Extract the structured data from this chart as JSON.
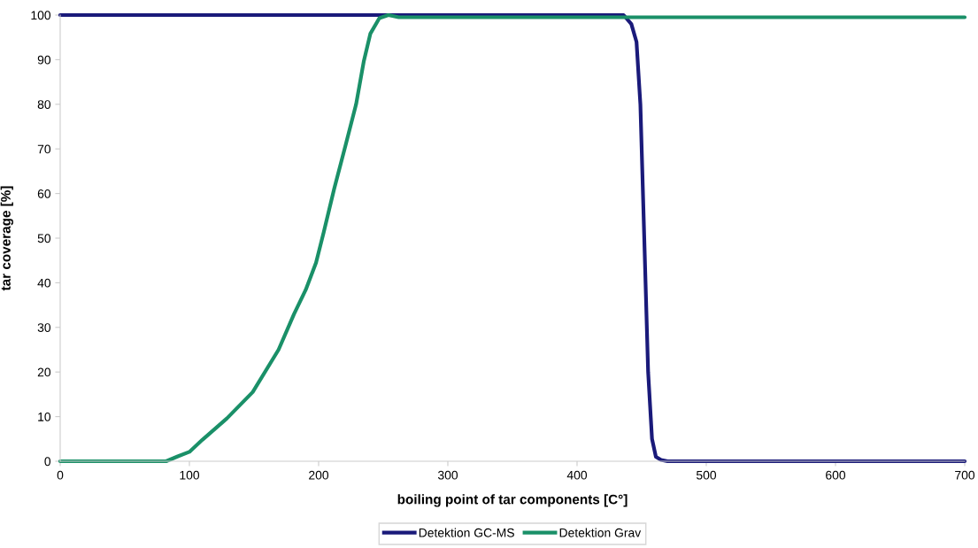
{
  "chart_data": {
    "type": "line",
    "xlabel": "boiling point of tar components [C°]",
    "ylabel": "tar coverage [%]",
    "xlim": [
      0,
      700
    ],
    "xticks": [
      0,
      100,
      200,
      300,
      400,
      500,
      600,
      700
    ],
    "ylim": [
      0,
      100
    ],
    "yticks": [
      0,
      10,
      20,
      30,
      40,
      50,
      60,
      70,
      80,
      90,
      100
    ],
    "grid": false,
    "legend": "bottom",
    "marker": "none",
    "line_style": "solid",
    "series": [
      {
        "name": "Detektion GC-MS",
        "color": "#1a1a7a",
        "x": [
          0,
          100,
          200,
          300,
          400,
          436,
          442,
          446,
          449,
          452,
          455,
          458,
          461,
          465,
          470,
          500,
          600,
          700
        ],
        "values": [
          100,
          100,
          100,
          100,
          100,
          100,
          98,
          94,
          80,
          50,
          20,
          5,
          1,
          0.3,
          0,
          0,
          0,
          0
        ]
      },
      {
        "name": "Detektion Grav",
        "color": "#1a9068",
        "x": [
          0,
          50,
          82,
          91,
          100,
          110,
          129,
          149,
          169,
          181,
          190,
          198,
          204,
          212,
          221,
          229,
          235,
          240,
          247,
          254,
          262,
          300,
          400,
          500,
          600,
          700
        ],
        "values": [
          0,
          0,
          0,
          1.1,
          2.1,
          4.8,
          9.6,
          15.5,
          25,
          33,
          38.4,
          44.5,
          51.4,
          61,
          71,
          80,
          89.7,
          95.8,
          99.3,
          100,
          99.5,
          99.5,
          99.5,
          99.5,
          99.5,
          99.5
        ]
      }
    ]
  }
}
